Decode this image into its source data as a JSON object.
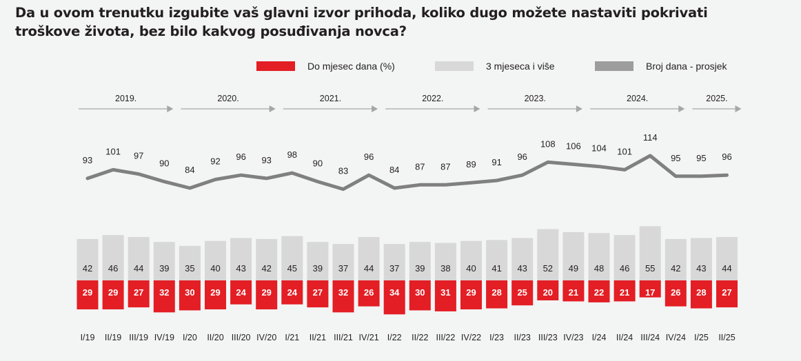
{
  "title": "Da u ovom trenutku izgubite vaš glavni izvor prihoda, koliko dugo možete nastaviti pokrivati troškove života, bez bilo kakvog posuđivanja novca?",
  "colors": {
    "red": "#e31e24",
    "lightgray": "#d8d8d8",
    "line": "#808080",
    "legend_line": "#9d9d9d",
    "arrow": "#a6a6a6",
    "text": "#231f20",
    "background": "#f3f4f4"
  },
  "legend": [
    {
      "label": "Do mjesec dana (%)",
      "color": "#e31e24"
    },
    {
      "label": "3 mjeseca i više",
      "color": "#d8d8d8"
    },
    {
      "label": "Broj dana - prosjek",
      "color": "#9d9d9d"
    }
  ],
  "years": [
    {
      "label": "2019.",
      "from": 0,
      "to": 3
    },
    {
      "label": "2020.",
      "from": 4,
      "to": 7
    },
    {
      "label": "2021.",
      "from": 8,
      "to": 11
    },
    {
      "label": "2022.",
      "from": 12,
      "to": 15
    },
    {
      "label": "2023.",
      "from": 16,
      "to": 19
    },
    {
      "label": "2024.",
      "from": 20,
      "to": 23
    },
    {
      "label": "2025.",
      "from": 24,
      "to": 25
    }
  ],
  "chart_data": {
    "type": "bar",
    "title": "Da u ovom trenutku izgubite vaš glavni izvor prihoda, koliko dugo možete nastaviti pokrivati troškove života, bez bilo kakvog posuđivanja novca?",
    "xlabel": "",
    "ylabel": "",
    "legend_position": "top-right",
    "grid": false,
    "categories": [
      "I/19",
      "II/19",
      "III/19",
      "IV/19",
      "I/20",
      "II/20",
      "III/20",
      "IV/20",
      "I/21",
      "II/21",
      "III/21",
      "IV/21",
      "I/22",
      "II/22",
      "III/22",
      "IV/22",
      "I/23",
      "II/23",
      "III/23",
      "IV/23",
      "I/24",
      "II/24",
      "III/24",
      "IV/24",
      "I/25",
      "II/25"
    ],
    "series": [
      {
        "name": "Do mjesec dana (%)",
        "type": "bar",
        "direction": "down",
        "values": [
          29,
          29,
          27,
          32,
          30,
          29,
          24,
          29,
          24,
          27,
          32,
          26,
          34,
          30,
          31,
          29,
          28,
          25,
          20,
          21,
          22,
          21,
          17,
          26,
          28,
          27
        ]
      },
      {
        "name": "3 mjeseca i više",
        "type": "bar",
        "direction": "up",
        "values": [
          42,
          46,
          44,
          39,
          35,
          40,
          43,
          42,
          45,
          39,
          37,
          44,
          37,
          39,
          38,
          40,
          41,
          43,
          52,
          49,
          48,
          46,
          55,
          42,
          43,
          44
        ]
      },
      {
        "name": "Broj dana - prosjek",
        "type": "line",
        "values": [
          93,
          101,
          97,
          90,
          84,
          92,
          96,
          93,
          98,
          90,
          83,
          96,
          84,
          87,
          87,
          89,
          91,
          96,
          108,
          106,
          104,
          101,
          114,
          95,
          95,
          96
        ]
      }
    ]
  }
}
